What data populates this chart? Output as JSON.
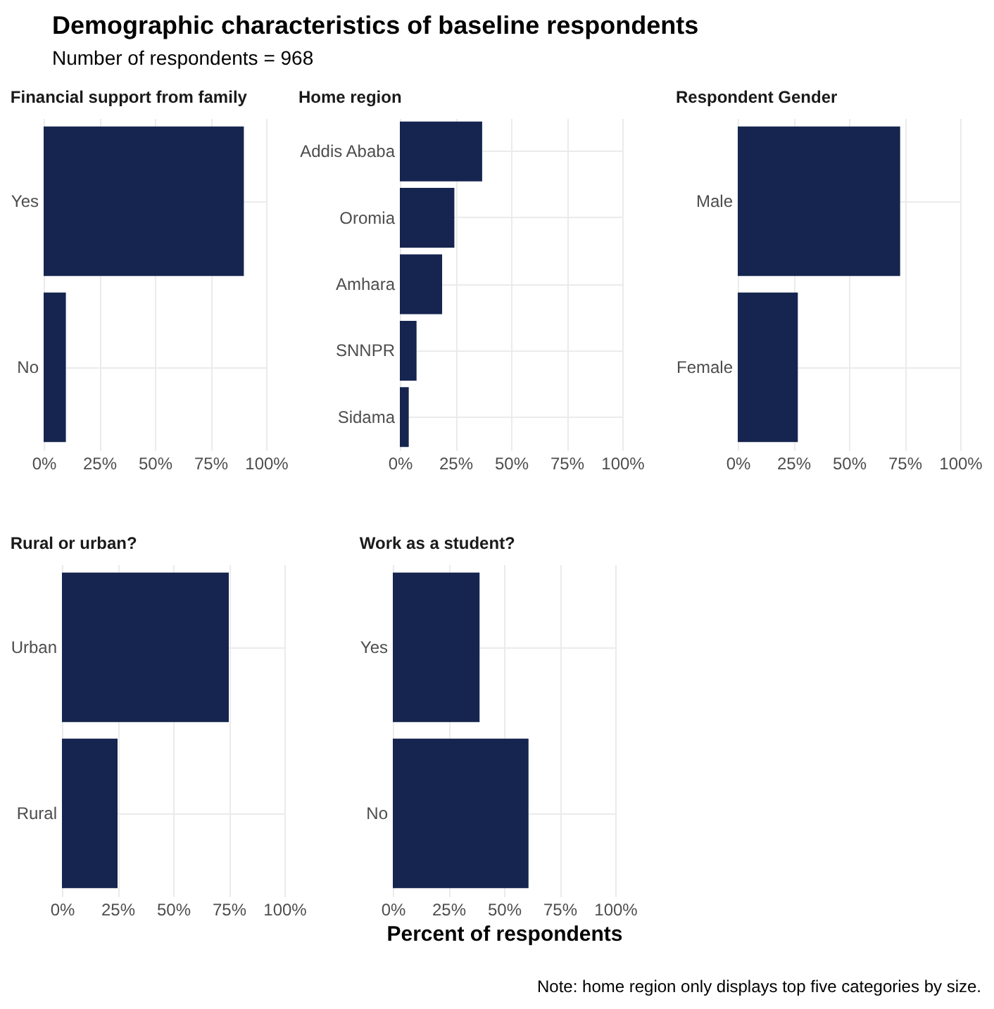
{
  "chart_data": [
    {
      "type": "other",
      "title": "Demographic characteristics of baseline respondents",
      "subtitle": "Number of respondents = 968",
      "annotations": [
        "Note: home region only displays top five categories by size."
      ]
    },
    {
      "type": "bar",
      "orientation": "horizontal",
      "title": "Financial support from family",
      "categories": [
        "Yes",
        "No"
      ],
      "values": [
        90,
        10
      ],
      "color": "#15254f",
      "xlim": [
        0,
        100
      ],
      "xticks": [
        {
          "value": 0,
          "label": "0%"
        },
        {
          "value": 25,
          "label": "25%"
        },
        {
          "value": 50,
          "label": "50%"
        },
        {
          "value": 75,
          "label": "75%"
        },
        {
          "value": 100,
          "label": "100%"
        }
      ],
      "grid": true
    },
    {
      "type": "bar",
      "orientation": "horizontal",
      "title": "Home region",
      "categories": [
        "Addis Ababa",
        "Oromia",
        "Amhara",
        "SNNPR",
        "Sidama"
      ],
      "values": [
        37,
        24.5,
        19,
        7.5,
        4
      ],
      "color": "#15254f",
      "xlim": [
        0,
        100
      ],
      "xticks": [
        {
          "value": 0,
          "label": "0%"
        },
        {
          "value": 25,
          "label": "25%"
        },
        {
          "value": 50,
          "label": "50%"
        },
        {
          "value": 75,
          "label": "75%"
        },
        {
          "value": 100,
          "label": "100%"
        }
      ],
      "grid": true
    },
    {
      "type": "bar",
      "orientation": "horizontal",
      "title": "Respondent Gender",
      "categories": [
        "Male",
        "Female"
      ],
      "values": [
        73,
        27
      ],
      "color": "#15254f",
      "xlim": [
        0,
        100
      ],
      "xticks": [
        {
          "value": 0,
          "label": "0%"
        },
        {
          "value": 25,
          "label": "25%"
        },
        {
          "value": 50,
          "label": "50%"
        },
        {
          "value": 75,
          "label": "75%"
        },
        {
          "value": 100,
          "label": "100%"
        }
      ],
      "grid": true
    },
    {
      "type": "bar",
      "orientation": "horizontal",
      "title": "Rural or urban?",
      "categories": [
        "Urban",
        "Rural"
      ],
      "values": [
        75,
        25
      ],
      "color": "#15254f",
      "xlim": [
        0,
        100
      ],
      "xticks": [
        {
          "value": 0,
          "label": "0%"
        },
        {
          "value": 25,
          "label": "25%"
        },
        {
          "value": 50,
          "label": "50%"
        },
        {
          "value": 75,
          "label": "75%"
        },
        {
          "value": 100,
          "label": "100%"
        }
      ],
      "grid": true
    },
    {
      "type": "bar",
      "orientation": "horizontal",
      "title": "Work as a student?",
      "xlabel": "Percent of respondents",
      "categories": [
        "Yes",
        "No"
      ],
      "values": [
        39,
        61
      ],
      "color": "#15254f",
      "xlim": [
        0,
        100
      ],
      "xticks": [
        {
          "value": 0,
          "label": "0%"
        },
        {
          "value": 25,
          "label": "25%"
        },
        {
          "value": 50,
          "label": "50%"
        },
        {
          "value": 75,
          "label": "75%"
        },
        {
          "value": 100,
          "label": "100%"
        }
      ],
      "grid": true
    }
  ]
}
